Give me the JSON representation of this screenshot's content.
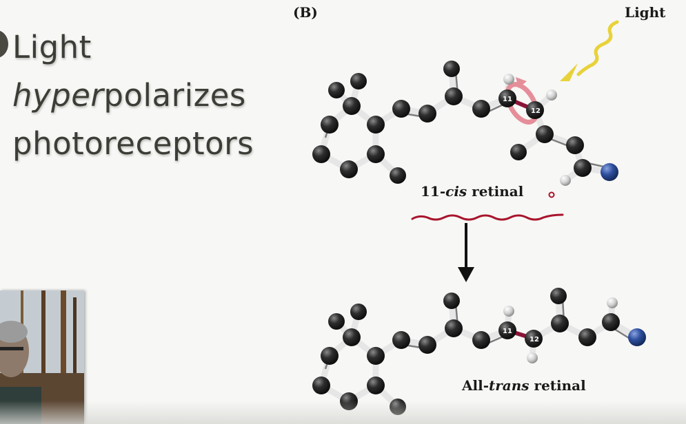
{
  "slide": {
    "heading_line1": "Light",
    "heading_line2_italic": "hyper",
    "heading_line2_rest": "polarizes",
    "heading_line3": "photoreceptors",
    "panel_label": "(B)",
    "light_label": "Light",
    "cis_label_prefix": "11-",
    "cis_label_italic": "cis",
    "cis_label_suffix": " retinal",
    "trans_label_prefix": "All-",
    "trans_label_italic": "trans",
    "trans_label_suffix": " retinal",
    "atom_11": "11",
    "atom_12": "12",
    "atom_11_b": "11",
    "atom_12_b": "12"
  },
  "colors": {
    "carbon": "#2b2b2b",
    "hydrogen": "#d9d9d9",
    "nitrogen": "#2e4f9e",
    "highlight_bond": "#8a1538",
    "light_wave": "#e8d23a",
    "rotation_arrow": "#e58e9a",
    "underline": "#a8142c"
  }
}
